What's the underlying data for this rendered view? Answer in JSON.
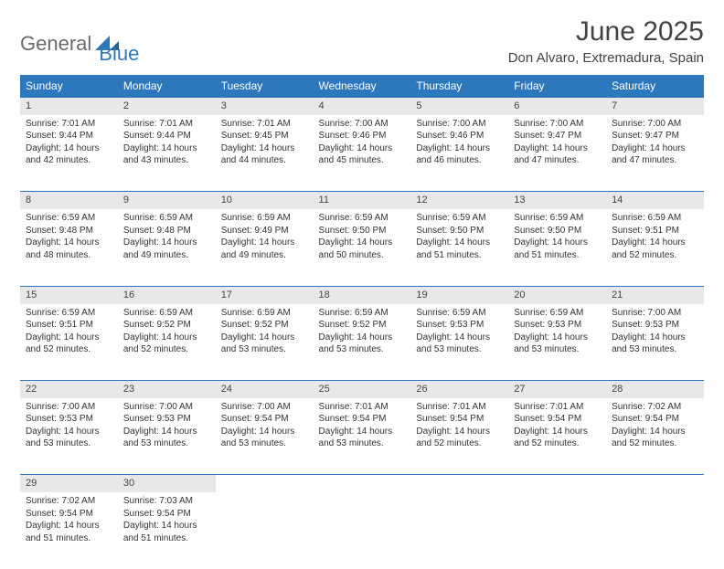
{
  "brand": {
    "part1": "General",
    "part2": "Blue"
  },
  "title": "June 2025",
  "location": "Don Alvaro, Extremadura, Spain",
  "colors": {
    "header_bg": "#2d78bd",
    "header_text": "#ffffff",
    "daynum_bg": "#e8e8e8",
    "border": "#2d78bd",
    "text": "#333333",
    "brand_gray": "#6b6b6b",
    "brand_blue": "#2d78bd"
  },
  "weekdays": [
    "Sunday",
    "Monday",
    "Tuesday",
    "Wednesday",
    "Thursday",
    "Friday",
    "Saturday"
  ],
  "weeks": [
    [
      {
        "n": "1",
        "sr": "7:01 AM",
        "ss": "9:44 PM",
        "dh": "14",
        "dm": "42"
      },
      {
        "n": "2",
        "sr": "7:01 AM",
        "ss": "9:44 PM",
        "dh": "14",
        "dm": "43"
      },
      {
        "n": "3",
        "sr": "7:01 AM",
        "ss": "9:45 PM",
        "dh": "14",
        "dm": "44"
      },
      {
        "n": "4",
        "sr": "7:00 AM",
        "ss": "9:46 PM",
        "dh": "14",
        "dm": "45"
      },
      {
        "n": "5",
        "sr": "7:00 AM",
        "ss": "9:46 PM",
        "dh": "14",
        "dm": "46"
      },
      {
        "n": "6",
        "sr": "7:00 AM",
        "ss": "9:47 PM",
        "dh": "14",
        "dm": "47"
      },
      {
        "n": "7",
        "sr": "7:00 AM",
        "ss": "9:47 PM",
        "dh": "14",
        "dm": "47"
      }
    ],
    [
      {
        "n": "8",
        "sr": "6:59 AM",
        "ss": "9:48 PM",
        "dh": "14",
        "dm": "48"
      },
      {
        "n": "9",
        "sr": "6:59 AM",
        "ss": "9:48 PM",
        "dh": "14",
        "dm": "49"
      },
      {
        "n": "10",
        "sr": "6:59 AM",
        "ss": "9:49 PM",
        "dh": "14",
        "dm": "49"
      },
      {
        "n": "11",
        "sr": "6:59 AM",
        "ss": "9:50 PM",
        "dh": "14",
        "dm": "50"
      },
      {
        "n": "12",
        "sr": "6:59 AM",
        "ss": "9:50 PM",
        "dh": "14",
        "dm": "51"
      },
      {
        "n": "13",
        "sr": "6:59 AM",
        "ss": "9:50 PM",
        "dh": "14",
        "dm": "51"
      },
      {
        "n": "14",
        "sr": "6:59 AM",
        "ss": "9:51 PM",
        "dh": "14",
        "dm": "52"
      }
    ],
    [
      {
        "n": "15",
        "sr": "6:59 AM",
        "ss": "9:51 PM",
        "dh": "14",
        "dm": "52"
      },
      {
        "n": "16",
        "sr": "6:59 AM",
        "ss": "9:52 PM",
        "dh": "14",
        "dm": "52"
      },
      {
        "n": "17",
        "sr": "6:59 AM",
        "ss": "9:52 PM",
        "dh": "14",
        "dm": "53"
      },
      {
        "n": "18",
        "sr": "6:59 AM",
        "ss": "9:52 PM",
        "dh": "14",
        "dm": "53"
      },
      {
        "n": "19",
        "sr": "6:59 AM",
        "ss": "9:53 PM",
        "dh": "14",
        "dm": "53"
      },
      {
        "n": "20",
        "sr": "6:59 AM",
        "ss": "9:53 PM",
        "dh": "14",
        "dm": "53"
      },
      {
        "n": "21",
        "sr": "7:00 AM",
        "ss": "9:53 PM",
        "dh": "14",
        "dm": "53"
      }
    ],
    [
      {
        "n": "22",
        "sr": "7:00 AM",
        "ss": "9:53 PM",
        "dh": "14",
        "dm": "53"
      },
      {
        "n": "23",
        "sr": "7:00 AM",
        "ss": "9:53 PM",
        "dh": "14",
        "dm": "53"
      },
      {
        "n": "24",
        "sr": "7:00 AM",
        "ss": "9:54 PM",
        "dh": "14",
        "dm": "53"
      },
      {
        "n": "25",
        "sr": "7:01 AM",
        "ss": "9:54 PM",
        "dh": "14",
        "dm": "53"
      },
      {
        "n": "26",
        "sr": "7:01 AM",
        "ss": "9:54 PM",
        "dh": "14",
        "dm": "52"
      },
      {
        "n": "27",
        "sr": "7:01 AM",
        "ss": "9:54 PM",
        "dh": "14",
        "dm": "52"
      },
      {
        "n": "28",
        "sr": "7:02 AM",
        "ss": "9:54 PM",
        "dh": "14",
        "dm": "52"
      }
    ],
    [
      {
        "n": "29",
        "sr": "7:02 AM",
        "ss": "9:54 PM",
        "dh": "14",
        "dm": "51"
      },
      {
        "n": "30",
        "sr": "7:03 AM",
        "ss": "9:54 PM",
        "dh": "14",
        "dm": "51"
      },
      null,
      null,
      null,
      null,
      null
    ]
  ],
  "labels": {
    "sunrise": "Sunrise:",
    "sunset": "Sunset:",
    "daylight_prefix": "Daylight:",
    "hours_word": "hours",
    "and_word": "and",
    "minutes_word": "minutes."
  }
}
